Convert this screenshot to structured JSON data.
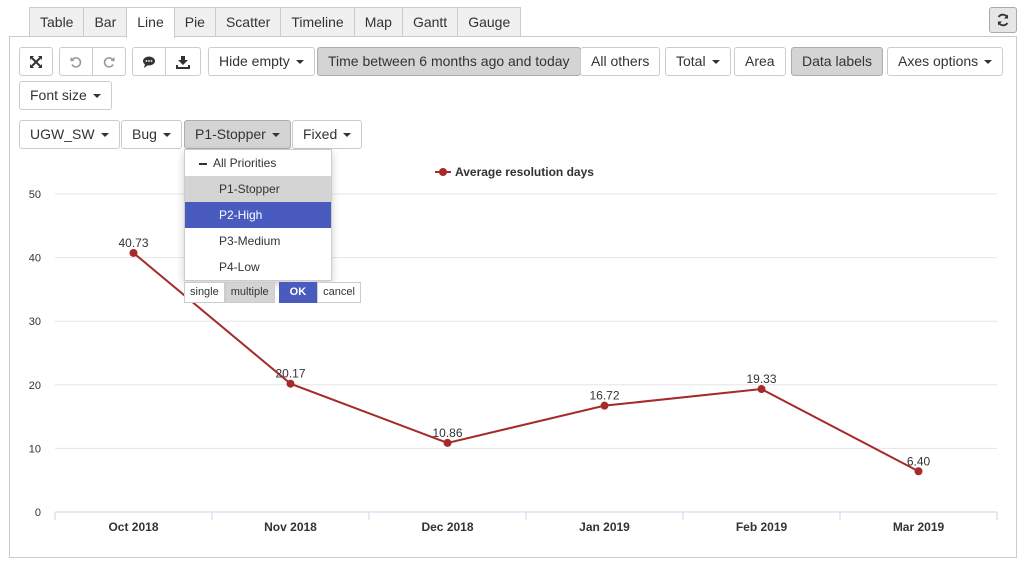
{
  "tabs": [
    "Table",
    "Bar",
    "Line",
    "Pie",
    "Scatter",
    "Timeline",
    "Map",
    "Gantt",
    "Gauge"
  ],
  "active_tab": "Line",
  "toolbar": {
    "hide_empty": "Hide empty",
    "time_filter": "Time between 6 months ago and today",
    "all_others": "All others",
    "total": "Total",
    "area": "Area",
    "data_labels": "Data labels",
    "axes_options": "Axes options",
    "font_size": "Font size"
  },
  "filters": {
    "project": "UGW_SW",
    "issue_type": "Bug",
    "priority": "P1-Stopper",
    "resolution": "Fixed"
  },
  "priority_dropdown": {
    "all_label": "All Priorities",
    "items": [
      "P1-Stopper",
      "P2-High",
      "P3-Medium",
      "P4-Low"
    ],
    "selected": "P1-Stopper",
    "highlighted": "P2-High",
    "mode_single": "single",
    "mode_multiple": "multiple",
    "ok": "OK",
    "cancel": "cancel"
  },
  "colors": {
    "series": "#a52a2a",
    "dropdown_highlight": "#4a5bc0",
    "pressed": "#d4d4d4"
  },
  "chart_data": {
    "type": "line",
    "categories": [
      "Oct 2018",
      "Nov 2018",
      "Dec 2018",
      "Jan 2019",
      "Feb 2019",
      "Mar 2019"
    ],
    "series": [
      {
        "name": "Average resolution days",
        "values": [
          40.73,
          20.17,
          10.86,
          16.72,
          19.33,
          6.4
        ]
      }
    ],
    "data_labels": [
      "40.73",
      "20.17",
      "10.86",
      "16.72",
      "19.33",
      "6.40"
    ],
    "ylim": [
      0,
      50
    ],
    "yticks": [
      0,
      10,
      20,
      30,
      40,
      50
    ],
    "grid": true,
    "legend_position": "top"
  }
}
